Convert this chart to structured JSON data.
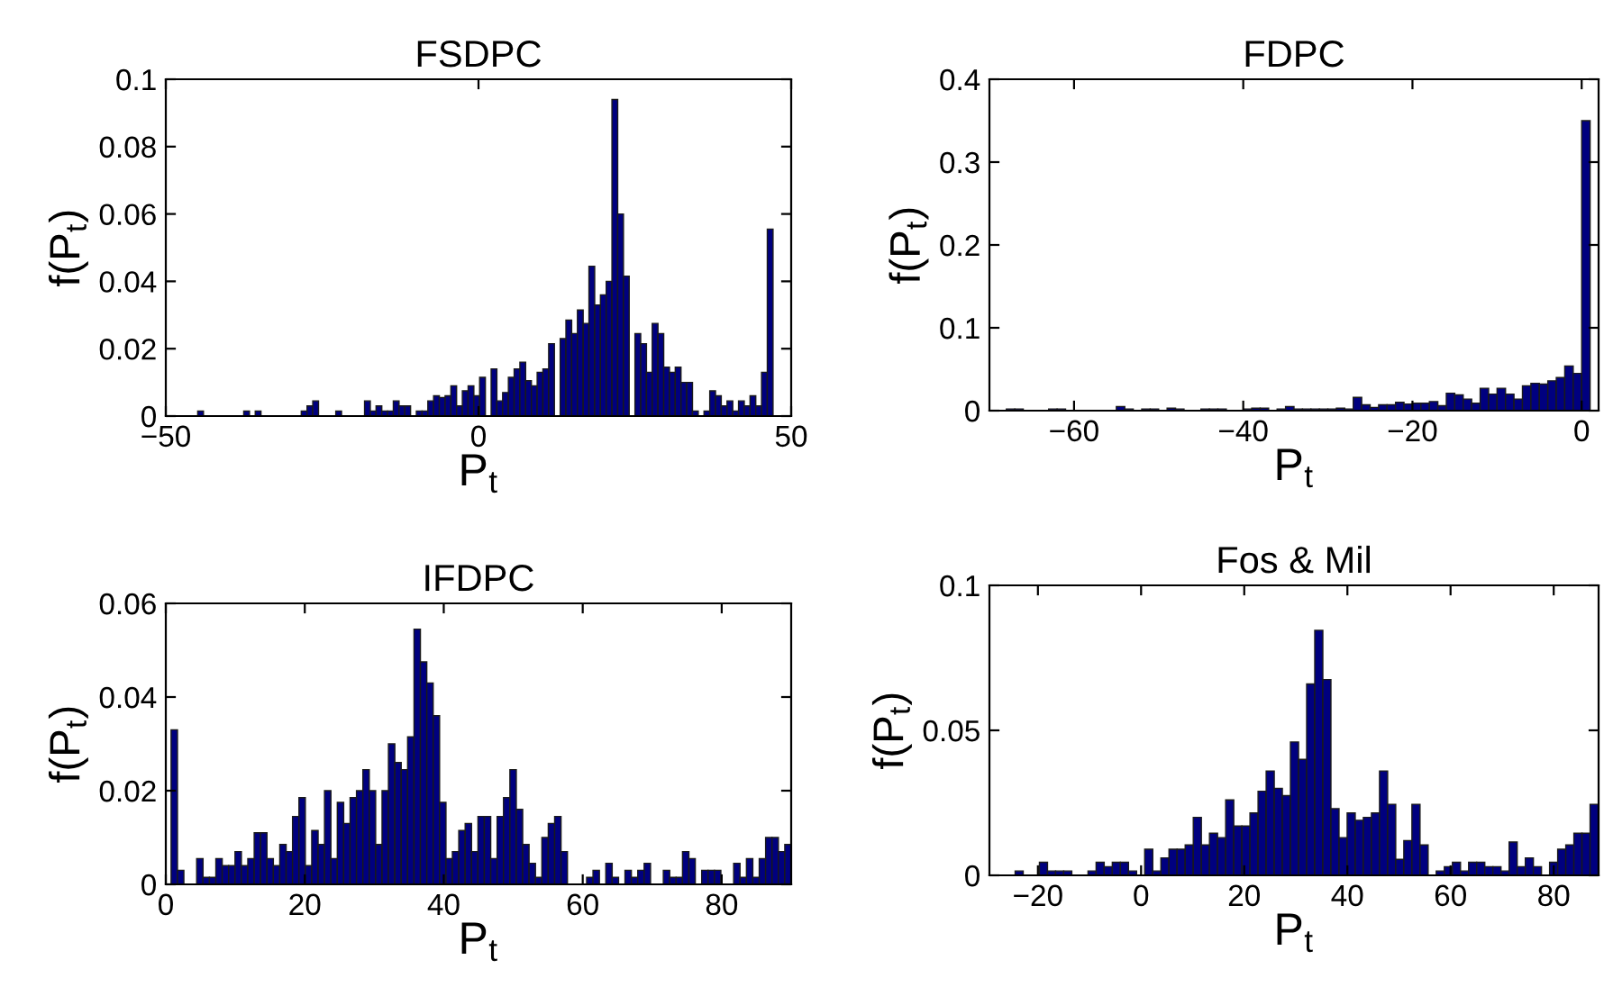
{
  "chart_data": [
    {
      "type": "histogram",
      "title": "FSDPC",
      "xlabel": "P$_{t}$",
      "ylabel": "f(P$_{t}$)",
      "color": "#00007f",
      "xlim": [
        -50,
        50
      ],
      "ylim": [
        0,
        0.1
      ],
      "xticks": [
        {
          "value": -50,
          "label": "−50"
        },
        0,
        50
      ],
      "yticks": [
        0,
        0.02,
        0.04,
        0.06,
        0.08,
        0.1
      ],
      "bins": [
        -44.9,
        -43.98,
        -43.06,
        -42.14,
        -41.22,
        -40.3,
        -39.38,
        -38.46,
        -37.54,
        -36.62,
        -35.7,
        -34.78,
        -33.86,
        -32.94,
        -32.02,
        -31.1,
        -30.18,
        -29.26,
        -28.34,
        -27.42,
        -26.5,
        -25.58,
        -24.66,
        -23.74,
        -22.82,
        -21.9,
        -20.98,
        -20.06,
        -19.14,
        -18.22,
        -17.3,
        -16.38,
        -15.46,
        -14.54,
        -13.62,
        -12.7,
        -11.78,
        -10.86,
        -9.94,
        -9.02,
        -8.1,
        -7.18,
        -6.26,
        -5.34,
        -4.42,
        -3.5,
        -2.58,
        -1.66,
        -0.74,
        0.18,
        1.1,
        2.02,
        2.94,
        3.86,
        4.78,
        5.7,
        6.62,
        7.54,
        8.46,
        9.38,
        10.3,
        11.22,
        12.14,
        13.06,
        13.98,
        14.9,
        15.82,
        16.74,
        17.66,
        18.58,
        19.5,
        20.42,
        21.34,
        22.26,
        23.18,
        24.1,
        25.02,
        25.94,
        26.86,
        27.78,
        28.7,
        29.62,
        30.54,
        31.46,
        32.38,
        33.3,
        34.22,
        35.14,
        36.06,
        36.98,
        37.9,
        38.82,
        39.74,
        40.66,
        41.58,
        42.5,
        43.42,
        44.34,
        45.26,
        46.18,
        47.1
      ],
      "values": [
        0.0015,
        0,
        0,
        0,
        0,
        0,
        0,
        0,
        0.0015,
        0,
        0.0015,
        0,
        0,
        0,
        0,
        0,
        0,
        0,
        0.0015,
        0.003,
        0.0045,
        0,
        0,
        0,
        0.0015,
        0,
        0,
        0,
        0,
        0.0045,
        0.0015,
        0.003,
        0.0015,
        0.0015,
        0.0045,
        0.003,
        0.003,
        0,
        0.0015,
        0.0015,
        0.0045,
        0.006,
        0.0055,
        0.006,
        0.009,
        0.003,
        0.0075,
        0.009,
        0.006,
        0.0115,
        0,
        0.014,
        0.0045,
        0.007,
        0.0115,
        0.014,
        0.016,
        0.0105,
        0.009,
        0.013,
        0.014,
        0.0215,
        0,
        0.023,
        0.0285,
        0.0245,
        0.0315,
        0.0275,
        0.0445,
        0.033,
        0.036,
        0.04,
        0.094,
        0.06,
        0.0415,
        0,
        0.0245,
        0.0215,
        0.013,
        0.0275,
        0.0245,
        0.0145,
        0.013,
        0.0145,
        0.01,
        0.01,
        0.0015,
        0,
        0.0015,
        0.0075,
        0.006,
        0.003,
        0.0045,
        0.0015,
        0.0045,
        0.003,
        0.006,
        0.003,
        0.013,
        0.0555
      ]
    },
    {
      "type": "histogram",
      "title": "FDPC",
      "xlabel": "P$_{t}$",
      "ylabel": "f(P$_{t}$)",
      "color": "#00007f",
      "xlim": [
        -70,
        2
      ],
      "ylim": [
        0,
        0.4
      ],
      "xticks": [
        {
          "value": -60,
          "label": "−60"
        },
        {
          "value": -40,
          "label": "−40"
        },
        {
          "value": -20,
          "label": "−20"
        },
        0
      ],
      "yticks": [
        0,
        0.1,
        0.2,
        0.3,
        0.4
      ],
      "bins": [
        -69,
        -68,
        -67,
        -66,
        -65,
        -64,
        -63,
        -62,
        -61,
        -60,
        -59,
        -58,
        -57,
        -56,
        -55,
        -54,
        -53,
        -52,
        -51,
        -50,
        -49,
        -48,
        -47,
        -46,
        -45,
        -44,
        -43,
        -42,
        -41,
        -40,
        -39,
        -38,
        -37,
        -36,
        -35,
        -34,
        -33,
        -32,
        -31,
        -30,
        -29,
        -28,
        -27,
        -26,
        -25,
        -24,
        -23,
        -22,
        -21,
        -20,
        -19,
        -18,
        -17,
        -16,
        -15,
        -14,
        -13,
        -12,
        -11,
        -10,
        -9,
        -8,
        -7,
        -6,
        -5,
        -4,
        -3,
        -2,
        -1,
        0,
        1
      ],
      "values": [
        0,
        0.002,
        0.002,
        0,
        0,
        0,
        0.002,
        0.002,
        0,
        0,
        0,
        0,
        0,
        0,
        0.005,
        0.002,
        0,
        0.002,
        0.002,
        0,
        0.003,
        0.002,
        0,
        0,
        0.002,
        0.002,
        0.002,
        0,
        0,
        0.002,
        0.003,
        0.003,
        0,
        0.002,
        0.005,
        0.002,
        0.002,
        0.002,
        0.002,
        0.002,
        0.003,
        0.002,
        0.016,
        0.007,
        0.004,
        0.007,
        0.007,
        0.01,
        0.008,
        0.009,
        0.009,
        0.011,
        0.006,
        0.021,
        0.019,
        0.014,
        0.009,
        0.027,
        0.02,
        0.027,
        0.02,
        0.014,
        0.03,
        0.033,
        0.032,
        0.036,
        0.04,
        0.054,
        0.045,
        0.35
      ]
    },
    {
      "type": "histogram",
      "title": "IFDPC",
      "xlabel": "P$_{t}$",
      "ylabel": "f(P$_{t}$)",
      "color": "#00007f",
      "xlim": [
        0,
        90
      ],
      "ylim": [
        0,
        0.06
      ],
      "xticks": [
        0,
        20,
        40,
        60,
        80
      ],
      "yticks": [
        0,
        0.02,
        0.04,
        0.06
      ],
      "bins": [
        0.76,
        1.68,
        2.6,
        3.52,
        4.44,
        5.36,
        6.28,
        7.2,
        8.12,
        9.04,
        9.96,
        10.88,
        11.8,
        12.72,
        13.64,
        14.56,
        15.48,
        16.4,
        17.32,
        18.24,
        19.16,
        20.08,
        21.0,
        21.92,
        22.84,
        23.76,
        24.68,
        25.6,
        26.52,
        27.44,
        28.36,
        29.28,
        30.2,
        31.12,
        32.04,
        32.96,
        33.88,
        34.8,
        35.72,
        36.64,
        37.56,
        38.48,
        39.4,
        40.32,
        41.24,
        42.16,
        43.08,
        44.0,
        44.92,
        45.84,
        46.76,
        47.68,
        48.6,
        49.52,
        50.44,
        51.36,
        52.28,
        53.2,
        54.12,
        55.04,
        55.96,
        56.88,
        57.8,
        58.72,
        59.64,
        60.56,
        61.48,
        62.4,
        63.32,
        64.24,
        65.16,
        66.08,
        67.0,
        67.92,
        68.84,
        69.76,
        70.68,
        71.6,
        72.52,
        73.44,
        74.36,
        75.28,
        76.2,
        77.12,
        78.04,
        78.96,
        79.88,
        80.8,
        81.72,
        82.64,
        83.56,
        84.48,
        85.4,
        86.32,
        87.24,
        88.16,
        89.08,
        90.0
      ],
      "values": [
        0.033,
        0.003,
        0,
        0,
        0.0055,
        0.0015,
        0.0015,
        0.0055,
        0.004,
        0.004,
        0.007,
        0.004,
        0.0055,
        0.011,
        0.011,
        0.0055,
        0.004,
        0.0085,
        0.007,
        0.0145,
        0.0185,
        0.004,
        0.0115,
        0.0085,
        0.02,
        0.0055,
        0.0175,
        0.013,
        0.0185,
        0.02,
        0.0245,
        0.02,
        0.0085,
        0.02,
        0.03,
        0.026,
        0.0245,
        0.0315,
        0.0545,
        0.0475,
        0.043,
        0.036,
        0.0175,
        0.0055,
        0.007,
        0.0115,
        0.013,
        0.007,
        0.0145,
        0.0145,
        0.0055,
        0.0145,
        0.0185,
        0.0245,
        0.016,
        0.0085,
        0.0045,
        0.0015,
        0.01,
        0.013,
        0.0145,
        0.007,
        0,
        0,
        0,
        0.0015,
        0.003,
        0,
        0.0045,
        0.0015,
        0,
        0.003,
        0.0015,
        0.003,
        0.0045,
        0,
        0,
        0.003,
        0.0015,
        0.0015,
        0.007,
        0.0055,
        0,
        0.003,
        0.003,
        0.003,
        0,
        0,
        0.0045,
        0.0015,
        0.0055,
        0.0015,
        0.0055,
        0.01,
        0.01,
        0.007,
        0.0085
      ]
    },
    {
      "type": "histogram",
      "title": "Fos & Mil",
      "xlabel": "P$_{t}$",
      "ylabel": "f(P$_{t}$)",
      "color": "#00007f",
      "xlim": [
        -29.4,
        88.7
      ],
      "ylim": [
        0,
        0.1
      ],
      "xticks": [
        {
          "value": -20,
          "label": "−20"
        },
        0,
        20,
        40,
        60,
        80
      ],
      "yticks": [
        0,
        0.05,
        0.1
      ],
      "bins": [
        -29.13,
        -27.56,
        -25.99,
        -24.42,
        -22.85,
        -21.28,
        -19.71,
        -18.14,
        -16.57,
        -15.0,
        -13.43,
        -11.86,
        -10.29,
        -8.72,
        -7.15,
        -5.58,
        -4.01,
        -2.44,
        -0.87,
        0.7,
        2.27,
        3.84,
        5.41,
        6.98,
        8.55,
        10.12,
        11.69,
        13.26,
        14.83,
        16.4,
        17.97,
        19.54,
        21.11,
        22.68,
        24.25,
        25.82,
        27.39,
        28.96,
        30.53,
        32.1,
        33.67,
        35.24,
        36.81,
        38.38,
        39.95,
        41.52,
        43.09,
        44.66,
        46.23,
        47.8,
        49.37,
        50.94,
        52.51,
        54.08,
        55.65,
        57.22,
        58.79,
        60.36,
        61.93,
        63.5,
        65.07,
        66.64,
        68.21,
        69.78,
        71.35,
        72.92,
        74.49,
        76.06,
        77.63,
        79.2,
        80.77,
        82.34,
        83.91,
        85.48,
        87.05,
        88.62
      ],
      "values": [
        0,
        0,
        0,
        0.0015,
        0,
        0,
        0.0045,
        0.0015,
        0.0015,
        0.0015,
        0,
        0,
        0.0015,
        0.0045,
        0.003,
        0.0045,
        0.0045,
        0.0015,
        0,
        0.009,
        0.0015,
        0.006,
        0.009,
        0.009,
        0.0105,
        0.02,
        0.0105,
        0.0145,
        0.013,
        0.026,
        0.017,
        0.017,
        0.0215,
        0.029,
        0.036,
        0.03,
        0.0275,
        0.046,
        0.04,
        0.066,
        0.0845,
        0.0675,
        0.023,
        0.013,
        0.0215,
        0.019,
        0.02,
        0.0215,
        0.036,
        0.0245,
        0.0055,
        0.012,
        0.0245,
        0.0105,
        0,
        0.0015,
        0.003,
        0.0045,
        0.0015,
        0.0045,
        0.0045,
        0.003,
        0.003,
        0.0015,
        0.0115,
        0.003,
        0.006,
        0.003,
        0,
        0.0045,
        0.009,
        0.0105,
        0.0145,
        0.0145,
        0.0245
      ]
    }
  ]
}
